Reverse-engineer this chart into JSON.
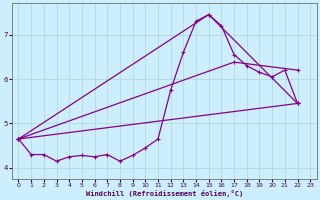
{
  "xlabel": "Windchill (Refroidissement éolien,°C)",
  "bg_color": "#cceeff",
  "grid_color": "#b0d8cc",
  "line_color": "#880088",
  "spine_color": "#667766",
  "xlim": [
    -0.5,
    23.5
  ],
  "ylim": [
    3.75,
    7.7
  ],
  "yticks": [
    4,
    5,
    6,
    7
  ],
  "xticks": [
    0,
    1,
    2,
    3,
    4,
    5,
    6,
    7,
    8,
    9,
    10,
    11,
    12,
    13,
    14,
    15,
    16,
    17,
    18,
    19,
    20,
    21,
    22,
    23
  ],
  "curve_x": [
    0,
    1,
    2,
    3,
    4,
    5,
    6,
    7,
    8,
    9,
    10,
    11,
    12,
    13,
    14,
    15,
    16,
    17,
    18,
    19,
    20,
    21,
    22
  ],
  "curve_y": [
    4.65,
    4.3,
    4.3,
    4.15,
    4.25,
    4.28,
    4.25,
    4.3,
    4.15,
    4.28,
    4.45,
    4.65,
    5.75,
    6.6,
    7.3,
    7.45,
    7.2,
    6.55,
    6.3,
    6.15,
    6.05,
    6.2,
    5.45
  ],
  "line1_x": [
    0,
    22
  ],
  "line1_y": [
    4.65,
    5.45
  ],
  "line2_x": [
    0,
    15,
    22
  ],
  "line2_y": [
    4.65,
    7.45,
    5.45
  ],
  "line3_x": [
    0,
    17,
    22
  ],
  "line3_y": [
    4.65,
    6.38,
    6.2
  ]
}
